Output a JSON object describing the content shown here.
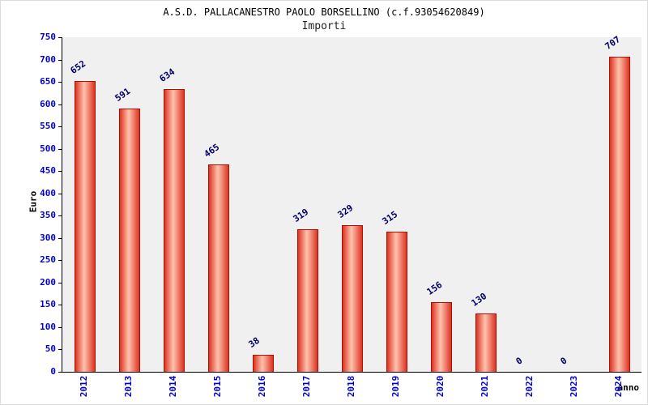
{
  "chart_data": {
    "type": "bar",
    "title": "A.S.D. PALLACANESTRO PAOLO BORSELLINO (c.f.93054620849)",
    "subtitle": "Importi",
    "ylabel": "Euro",
    "xlabel": "anno",
    "categories": [
      "2012",
      "2013",
      "2014",
      "2015",
      "2016",
      "2017",
      "2018",
      "2019",
      "2020",
      "2021",
      "2022",
      "2023",
      "2024"
    ],
    "values": [
      652,
      591,
      634,
      465,
      38,
      319,
      329,
      315,
      156,
      130,
      0,
      0,
      707
    ],
    "ylim": [
      0,
      750
    ],
    "ytick_step": 50,
    "grid": false,
    "legend": "none",
    "plot_bg_color": "#f0f0f0",
    "bar_color": "#dd3322",
    "bar_highlight": "#ffc3ae",
    "bar_border_color": "#aa1100",
    "tick_label_color": "#0000cc",
    "value_label_color": "#000066"
  }
}
